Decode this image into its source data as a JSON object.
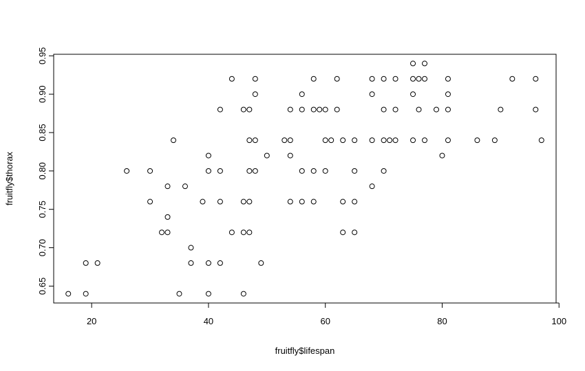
{
  "chart_data": {
    "type": "scatter",
    "title": "",
    "xlabel": "fruitfly$lifespan",
    "ylabel": "fruitfly$thorax",
    "xlim": [
      13.5,
      99.5
    ],
    "ylim": [
      0.628,
      0.952
    ],
    "x_ticks": [
      20,
      40,
      60,
      80,
      100
    ],
    "y_ticks": [
      0.65,
      0.7,
      0.75,
      0.8,
      0.85,
      0.9,
      0.95
    ],
    "x_tick_labels": [
      "20",
      "40",
      "60",
      "80",
      "100"
    ],
    "y_tick_labels": [
      "0.65",
      "0.70",
      "0.75",
      "0.80",
      "0.85",
      "0.90",
      "0.95"
    ],
    "grid": false,
    "legend": "none",
    "marker": "open-circle",
    "points": [
      [
        16,
        0.64
      ],
      [
        19,
        0.64
      ],
      [
        19,
        0.68
      ],
      [
        21,
        0.68
      ],
      [
        26,
        0.8
      ],
      [
        30,
        0.8
      ],
      [
        30,
        0.76
      ],
      [
        32,
        0.72
      ],
      [
        33,
        0.72
      ],
      [
        33,
        0.74
      ],
      [
        33,
        0.78
      ],
      [
        34,
        0.84
      ],
      [
        35,
        0.64
      ],
      [
        36,
        0.78
      ],
      [
        37,
        0.7
      ],
      [
        37,
        0.68
      ],
      [
        39,
        0.76
      ],
      [
        40,
        0.82
      ],
      [
        40,
        0.8
      ],
      [
        40,
        0.68
      ],
      [
        40,
        0.64
      ],
      [
        42,
        0.88
      ],
      [
        42,
        0.8
      ],
      [
        42,
        0.76
      ],
      [
        42,
        0.68
      ],
      [
        44,
        0.92
      ],
      [
        44,
        0.72
      ],
      [
        46,
        0.88
      ],
      [
        46,
        0.76
      ],
      [
        46,
        0.72
      ],
      [
        46,
        0.64
      ],
      [
        47,
        0.88
      ],
      [
        47,
        0.84
      ],
      [
        47,
        0.8
      ],
      [
        47,
        0.76
      ],
      [
        47,
        0.72
      ],
      [
        48,
        0.92
      ],
      [
        48,
        0.9
      ],
      [
        48,
        0.84
      ],
      [
        48,
        0.8
      ],
      [
        49,
        0.68
      ],
      [
        50,
        0.82
      ],
      [
        53,
        0.84
      ],
      [
        54,
        0.88
      ],
      [
        54,
        0.84
      ],
      [
        54,
        0.82
      ],
      [
        54,
        0.76
      ],
      [
        56,
        0.9
      ],
      [
        56,
        0.88
      ],
      [
        56,
        0.8
      ],
      [
        56,
        0.76
      ],
      [
        58,
        0.92
      ],
      [
        58,
        0.88
      ],
      [
        58,
        0.8
      ],
      [
        58,
        0.76
      ],
      [
        59,
        0.88
      ],
      [
        60,
        0.88
      ],
      [
        60,
        0.84
      ],
      [
        60,
        0.8
      ],
      [
        61,
        0.84
      ],
      [
        62,
        0.92
      ],
      [
        62,
        0.88
      ],
      [
        63,
        0.84
      ],
      [
        63,
        0.76
      ],
      [
        63,
        0.72
      ],
      [
        65,
        0.84
      ],
      [
        65,
        0.8
      ],
      [
        65,
        0.76
      ],
      [
        65,
        0.72
      ],
      [
        68,
        0.92
      ],
      [
        68,
        0.9
      ],
      [
        68,
        0.84
      ],
      [
        68,
        0.78
      ],
      [
        70,
        0.92
      ],
      [
        70,
        0.88
      ],
      [
        70,
        0.84
      ],
      [
        70,
        0.8
      ],
      [
        71,
        0.84
      ],
      [
        72,
        0.92
      ],
      [
        72,
        0.88
      ],
      [
        72,
        0.84
      ],
      [
        75,
        0.94
      ],
      [
        75,
        0.92
      ],
      [
        75,
        0.9
      ],
      [
        75,
        0.84
      ],
      [
        76,
        0.92
      ],
      [
        76,
        0.88
      ],
      [
        77,
        0.94
      ],
      [
        77,
        0.92
      ],
      [
        77,
        0.84
      ],
      [
        79,
        0.88
      ],
      [
        80,
        0.82
      ],
      [
        81,
        0.92
      ],
      [
        81,
        0.9
      ],
      [
        81,
        0.88
      ],
      [
        81,
        0.84
      ],
      [
        86,
        0.84
      ],
      [
        89,
        0.84
      ],
      [
        90,
        0.88
      ],
      [
        92,
        0.92
      ],
      [
        96,
        0.92
      ],
      [
        96,
        0.88
      ],
      [
        97,
        0.84
      ]
    ]
  }
}
